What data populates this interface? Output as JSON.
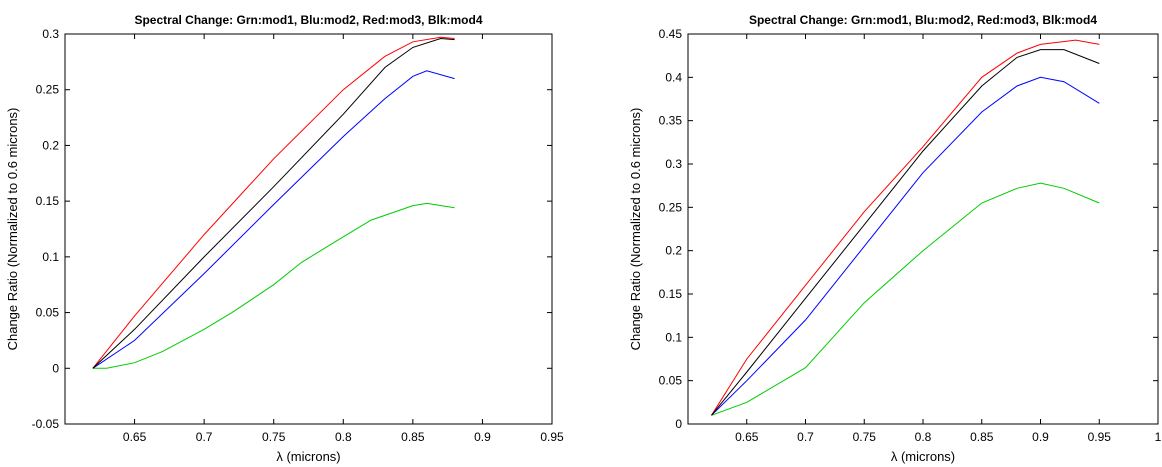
{
  "chart_data": [
    {
      "type": "line",
      "title": "Spectral Change: Grn:mod1, Blu:mod2, Red:mod3, Blk:mod4",
      "xlabel": "λ (microns)",
      "ylabel": "Change Ratio (Normalized to 0.6 microns)",
      "xlim": [
        0.6,
        0.95
      ],
      "ylim": [
        -0.05,
        0.3
      ],
      "xticks": [
        0.65,
        0.7,
        0.75,
        0.8,
        0.85,
        0.9,
        0.95
      ],
      "xtick_labels": [
        "0.65",
        "0.7",
        "0.75",
        "0.8",
        "0.85",
        "0.9",
        "0.95"
      ],
      "yticks": [
        -0.05,
        0,
        0.05,
        0.1,
        0.15,
        0.2,
        0.25,
        0.3
      ],
      "ytick_labels": [
        "-0.05",
        "0",
        "0.05",
        "0.1",
        "0.15",
        "0.2",
        "0.25",
        "0.3"
      ],
      "grid": false,
      "series": [
        {
          "color": "#00cc00",
          "x": [
            0.62,
            0.63,
            0.65,
            0.67,
            0.7,
            0.72,
            0.75,
            0.77,
            0.8,
            0.82,
            0.85,
            0.86,
            0.88
          ],
          "values": [
            0.0,
            0.0,
            0.005,
            0.015,
            0.035,
            0.05,
            0.075,
            0.095,
            0.118,
            0.133,
            0.146,
            0.148,
            0.144
          ]
        },
        {
          "color": "#0000ff",
          "x": [
            0.62,
            0.65,
            0.7,
            0.75,
            0.8,
            0.83,
            0.85,
            0.86,
            0.88
          ],
          "values": [
            0.0,
            0.025,
            0.085,
            0.147,
            0.208,
            0.242,
            0.262,
            0.267,
            0.26
          ]
        },
        {
          "color": "#ff0000",
          "x": [
            0.62,
            0.65,
            0.7,
            0.75,
            0.8,
            0.83,
            0.85,
            0.87,
            0.88
          ],
          "values": [
            0.0,
            0.047,
            0.12,
            0.188,
            0.25,
            0.28,
            0.293,
            0.297,
            0.296
          ]
        },
        {
          "color": "#000000",
          "x": [
            0.62,
            0.65,
            0.7,
            0.75,
            0.8,
            0.83,
            0.85,
            0.87,
            0.88
          ],
          "values": [
            0.0,
            0.035,
            0.1,
            0.163,
            0.228,
            0.27,
            0.288,
            0.296,
            0.295
          ]
        }
      ]
    },
    {
      "type": "line",
      "title": "Spectral Change: Grn:mod1, Blu:mod2, Red:mod3, Blk:mod4",
      "xlabel": "λ (microns)",
      "ylabel": "Change Ratio (Normalized to 0.6 microns)",
      "xlim": [
        0.6,
        1.0
      ],
      "ylim": [
        0,
        0.45
      ],
      "xticks": [
        0.65,
        0.7,
        0.75,
        0.8,
        0.85,
        0.9,
        0.95,
        1.0
      ],
      "xtick_labels": [
        "0.65",
        "0.7",
        "0.75",
        "0.8",
        "0.85",
        "0.9",
        "0.95",
        "1"
      ],
      "yticks": [
        0,
        0.05,
        0.1,
        0.15,
        0.2,
        0.25,
        0.3,
        0.35,
        0.4,
        0.45
      ],
      "ytick_labels": [
        "0",
        "0.05",
        "0.1",
        "0.15",
        "0.2",
        "0.25",
        "0.3",
        "0.35",
        "0.4",
        "0.45"
      ],
      "grid": false,
      "series": [
        {
          "color": "#00cc00",
          "x": [
            0.62,
            0.65,
            0.7,
            0.75,
            0.8,
            0.85,
            0.88,
            0.9,
            0.92,
            0.95
          ],
          "values": [
            0.01,
            0.025,
            0.065,
            0.14,
            0.2,
            0.255,
            0.272,
            0.278,
            0.272,
            0.255
          ]
        },
        {
          "color": "#0000ff",
          "x": [
            0.62,
            0.65,
            0.7,
            0.75,
            0.8,
            0.85,
            0.88,
            0.9,
            0.92,
            0.95
          ],
          "values": [
            0.01,
            0.05,
            0.12,
            0.205,
            0.29,
            0.36,
            0.39,
            0.4,
            0.395,
            0.37
          ]
        },
        {
          "color": "#ff0000",
          "x": [
            0.62,
            0.65,
            0.7,
            0.75,
            0.8,
            0.85,
            0.88,
            0.9,
            0.93,
            0.95
          ],
          "values": [
            0.01,
            0.075,
            0.16,
            0.245,
            0.32,
            0.4,
            0.428,
            0.438,
            0.443,
            0.438
          ]
        },
        {
          "color": "#000000",
          "x": [
            0.62,
            0.65,
            0.7,
            0.75,
            0.8,
            0.85,
            0.88,
            0.9,
            0.92,
            0.95
          ],
          "values": [
            0.01,
            0.06,
            0.145,
            0.23,
            0.315,
            0.39,
            0.423,
            0.432,
            0.432,
            0.416
          ]
        }
      ]
    }
  ]
}
